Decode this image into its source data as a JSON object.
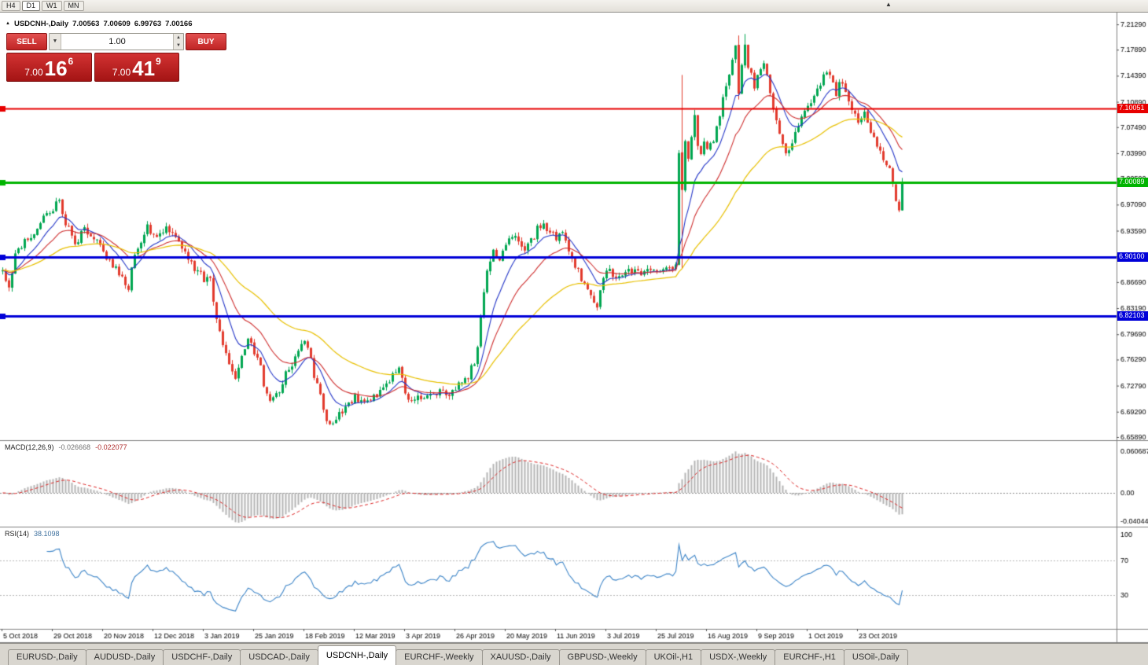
{
  "toolbar": {
    "timeframes": [
      "H4",
      "D1",
      "W1",
      "MN"
    ],
    "active_timeframe": "D1",
    "scroll_icon": "▲"
  },
  "header": {
    "expand_icon": "▲",
    "symbol": "USDCNH-,Daily",
    "open": "7.00563",
    "high": "7.00609",
    "low": "6.99763",
    "close": "7.00166"
  },
  "oct": {
    "sell_label": "SELL",
    "buy_label": "BUY",
    "volume": "1.00",
    "dropdown_icon": "▼",
    "spin_up_icon": "▲",
    "spin_down_icon": "▼",
    "sell_price": {
      "prefix": "7.00",
      "big": "16",
      "sup": "6"
    },
    "buy_price": {
      "prefix": "7.00",
      "big": "41",
      "sup": "9"
    }
  },
  "price_axis": {
    "labels": [
      "7.21290",
      "7.17890",
      "7.14390",
      "7.10890",
      "7.07490",
      "7.03990",
      "7.00590",
      "6.97090",
      "6.93590",
      "6.90190",
      "6.86690",
      "6.83190",
      "6.79690",
      "6.76290",
      "6.72790",
      "6.69290",
      "6.65890"
    ]
  },
  "hlines": [
    {
      "price": 7.10051,
      "label": "7.10051",
      "color": "#e80000",
      "width": 2
    },
    {
      "price": 7.00089,
      "label": "7.00089",
      "color": "#00b400",
      "width": 3
    },
    {
      "price": 6.901,
      "label": "6.90100",
      "color": "#0000d8",
      "width": 3
    },
    {
      "price": 6.82103,
      "label": "6.82103",
      "color": "#0000d8",
      "width": 3
    }
  ],
  "indicators": {
    "macd": {
      "title": "MACD(12,26,9)",
      "value1": "-0.026668",
      "value2": "-0.022077",
      "axis": [
        "0.060687",
        "0.00",
        "-0.040443"
      ],
      "bar_color": "#b4b4b4",
      "signal_color": "#dd2020"
    },
    "rsi": {
      "title": "RSI(14)",
      "value": "38.1098",
      "axis": [
        "100",
        "70",
        "30"
      ],
      "levels": [
        70,
        30
      ],
      "line_color": "#3d85c8"
    }
  },
  "date_axis": [
    {
      "idx": 0,
      "label": "5 Oct 2018"
    },
    {
      "idx": 16,
      "label": "29 Oct 2018"
    },
    {
      "idx": 32,
      "label": "20 Nov 2018"
    },
    {
      "idx": 48,
      "label": "12 Dec 2018"
    },
    {
      "idx": 64,
      "label": "3 Jan 2019"
    },
    {
      "idx": 80,
      "label": "25 Jan 2019"
    },
    {
      "idx": 96,
      "label": "18 Feb 2019"
    },
    {
      "idx": 112,
      "label": "12 Mar 2019"
    },
    {
      "idx": 128,
      "label": "3 Apr 2019"
    },
    {
      "idx": 144,
      "label": "26 Apr 2019"
    },
    {
      "idx": 160,
      "label": "20 May 2019"
    },
    {
      "idx": 176,
      "label": "11 Jun 2019"
    },
    {
      "idx": 192,
      "label": "3 Jul 2019"
    },
    {
      "idx": 208,
      "label": "25 Jul 2019"
    },
    {
      "idx": 224,
      "label": "16 Aug 2019"
    },
    {
      "idx": 240,
      "label": "9 Sep 2019"
    },
    {
      "idx": 256,
      "label": "1 Oct 2019"
    },
    {
      "idx": 272,
      "label": "23 Oct 2019"
    }
  ],
  "tabs": {
    "active_index": 4,
    "items": [
      "EURUSD-,Daily",
      "AUDUSD-,Daily",
      "USDCHF-,Daily",
      "USDCAD-,Daily",
      "USDCNH-,Daily",
      "EURCHF-,Weekly",
      "XAUUSD-,Daily",
      "GBPUSD-,Weekly",
      "UKOil-,H1",
      "USDX-,Weekly",
      "EURCHF-,H1",
      "USOil-,Daily"
    ]
  },
  "chart_data": {
    "type": "candlestick",
    "symbol": "USDCNH",
    "timeframe": "Daily",
    "candle_count": 287,
    "price_range": [
      6.6589,
      7.2129
    ],
    "last_close": 7.00166,
    "up_color": "#00a651",
    "down_color": "#e23b2e",
    "ma": {
      "fast": {
        "period": 10,
        "color": "#2436c8"
      },
      "mid": {
        "period": 21,
        "color": "#cf2e2e"
      },
      "slow": {
        "period": 50,
        "color": "#e8c000"
      }
    },
    "anchors": [
      [
        0,
        6.885
      ],
      [
        2,
        6.862
      ],
      [
        4,
        6.9
      ],
      [
        7,
        6.923
      ],
      [
        10,
        6.93
      ],
      [
        13,
        6.952
      ],
      [
        16,
        6.966
      ],
      [
        18,
        6.975
      ],
      [
        20,
        6.948
      ],
      [
        23,
        6.917
      ],
      [
        26,
        6.937
      ],
      [
        29,
        6.926
      ],
      [
        32,
        6.906
      ],
      [
        35,
        6.89
      ],
      [
        38,
        6.872
      ],
      [
        40,
        6.852
      ],
      [
        41,
        6.882
      ],
      [
        43,
        6.915
      ],
      [
        46,
        6.94
      ],
      [
        49,
        6.925
      ],
      [
        52,
        6.944
      ],
      [
        55,
        6.93
      ],
      [
        58,
        6.906
      ],
      [
        61,
        6.886
      ],
      [
        64,
        6.872
      ],
      [
        66,
        6.868
      ],
      [
        68,
        6.82
      ],
      [
        70,
        6.786
      ],
      [
        72,
        6.756
      ],
      [
        74,
        6.742
      ],
      [
        76,
        6.77
      ],
      [
        78,
        6.788
      ],
      [
        80,
        6.772
      ],
      [
        82,
        6.752
      ],
      [
        84,
        6.712
      ],
      [
        86,
        6.708
      ],
      [
        88,
        6.722
      ],
      [
        90,
        6.742
      ],
      [
        93,
        6.762
      ],
      [
        95,
        6.786
      ],
      [
        97,
        6.782
      ],
      [
        99,
        6.742
      ],
      [
        101,
        6.712
      ],
      [
        103,
        6.682
      ],
      [
        105,
        6.672
      ],
      [
        107,
        6.688
      ],
      [
        109,
        6.702
      ],
      [
        112,
        6.712
      ],
      [
        115,
        6.706
      ],
      [
        118,
        6.712
      ],
      [
        121,
        6.722
      ],
      [
        124,
        6.742
      ],
      [
        126,
        6.752
      ],
      [
        128,
        6.718
      ],
      [
        130,
        6.706
      ],
      [
        133,
        6.712
      ],
      [
        136,
        6.718
      ],
      [
        139,
        6.722
      ],
      [
        142,
        6.712
      ],
      [
        145,
        6.728
      ],
      [
        148,
        6.742
      ],
      [
        150,
        6.758
      ],
      [
        151,
        6.775
      ],
      [
        152,
        6.815
      ],
      [
        153,
        6.858
      ],
      [
        154,
        6.878
      ],
      [
        155,
        6.898
      ],
      [
        156,
        6.912
      ],
      [
        158,
        6.896
      ],
      [
        160,
        6.916
      ],
      [
        162,
        6.932
      ],
      [
        164,
        6.918
      ],
      [
        166,
        6.908
      ],
      [
        168,
        6.922
      ],
      [
        170,
        6.938
      ],
      [
        172,
        6.945
      ],
      [
        174,
        6.935
      ],
      [
        176,
        6.928
      ],
      [
        178,
        6.932
      ],
      [
        180,
        6.908
      ],
      [
        182,
        6.888
      ],
      [
        184,
        6.872
      ],
      [
        186,
        6.855
      ],
      [
        188,
        6.838
      ],
      [
        189,
        6.828
      ],
      [
        190,
        6.852
      ],
      [
        191,
        6.872
      ],
      [
        192,
        6.882
      ],
      [
        194,
        6.878
      ],
      [
        196,
        6.872
      ],
      [
        198,
        6.878
      ],
      [
        200,
        6.882
      ],
      [
        202,
        6.878
      ],
      [
        204,
        6.884
      ],
      [
        206,
        6.878
      ],
      [
        208,
        6.882
      ],
      [
        210,
        6.886
      ],
      [
        212,
        6.882
      ],
      [
        214,
        6.892
      ],
      [
        215,
        7.04
      ],
      [
        216,
        6.995
      ],
      [
        217,
        7.058
      ],
      [
        218,
        7.03
      ],
      [
        219,
        7.058
      ],
      [
        220,
        7.088
      ],
      [
        221,
        7.052
      ],
      [
        222,
        7.04
      ],
      [
        223,
        7.058
      ],
      [
        224,
        7.046
      ],
      [
        226,
        7.06
      ],
      [
        228,
        7.092
      ],
      [
        230,
        7.132
      ],
      [
        232,
        7.168
      ],
      [
        233,
        7.186
      ],
      [
        234,
        7.12
      ],
      [
        235,
        7.16
      ],
      [
        236,
        7.188
      ],
      [
        237,
        7.155
      ],
      [
        238,
        7.148
      ],
      [
        239,
        7.132
      ],
      [
        240,
        7.14
      ],
      [
        241,
        7.155
      ],
      [
        242,
        7.16
      ],
      [
        243,
        7.14
      ],
      [
        244,
        7.12
      ],
      [
        245,
        7.1
      ],
      [
        246,
        7.08
      ],
      [
        247,
        7.064
      ],
      [
        248,
        7.05
      ],
      [
        249,
        7.044
      ],
      [
        250,
        7.04
      ],
      [
        251,
        7.054
      ],
      [
        252,
        7.07
      ],
      [
        253,
        7.08
      ],
      [
        254,
        7.09
      ],
      [
        256,
        7.1
      ],
      [
        258,
        7.12
      ],
      [
        260,
        7.135
      ],
      [
        262,
        7.148
      ],
      [
        263,
        7.14
      ],
      [
        264,
        7.13
      ],
      [
        265,
        7.12
      ],
      [
        266,
        7.13
      ],
      [
        267,
        7.138
      ],
      [
        268,
        7.125
      ],
      [
        269,
        7.11
      ],
      [
        270,
        7.1
      ],
      [
        271,
        7.09
      ],
      [
        272,
        7.082
      ],
      [
        273,
        7.088
      ],
      [
        274,
        7.092
      ],
      [
        275,
        7.08
      ],
      [
        276,
        7.068
      ],
      [
        277,
        7.058
      ],
      [
        278,
        7.05
      ],
      [
        279,
        7.042
      ],
      [
        280,
        7.035
      ],
      [
        281,
        7.028
      ],
      [
        282,
        7.02
      ],
      [
        283,
        6.998
      ],
      [
        284,
        6.972
      ],
      [
        285,
        6.96
      ],
      [
        286,
        7.0017
      ]
    ],
    "spikes": [
      {
        "i": 216,
        "hi": 7.145,
        "lo": 6.885
      },
      {
        "i": 220,
        "hi": 7.098
      },
      {
        "i": 234,
        "hi": 7.198,
        "lo": 7.112
      },
      {
        "i": 236,
        "hi": 7.2
      }
    ]
  }
}
